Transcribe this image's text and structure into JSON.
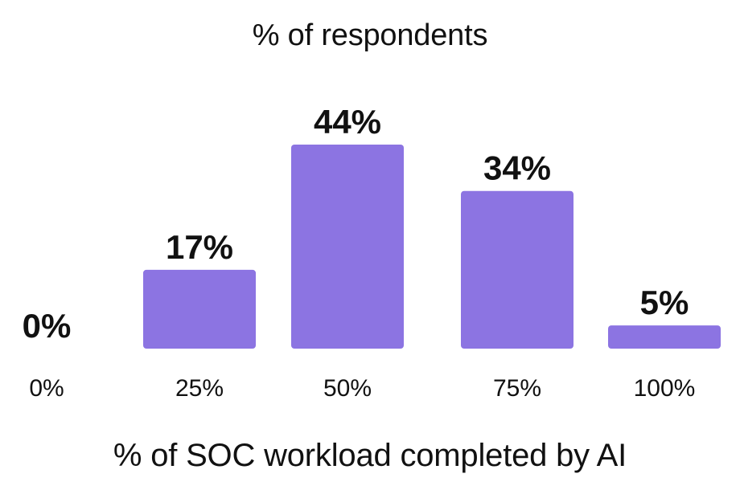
{
  "chart_data": {
    "type": "bar",
    "title": "% of respondents",
    "xlabel": "% of SOC workload completed by AI",
    "ylabel": "",
    "categories": [
      "0%",
      "25%",
      "50%",
      "75%",
      "100%"
    ],
    "values": [
      0,
      17,
      44,
      34,
      5
    ],
    "value_labels": [
      "0%",
      "17%",
      "44%",
      "34%",
      "5%"
    ],
    "ylim": [
      0,
      44
    ],
    "grid": false,
    "legend": "none",
    "bar_color": "#8C74E2",
    "text_color": "#111111"
  }
}
